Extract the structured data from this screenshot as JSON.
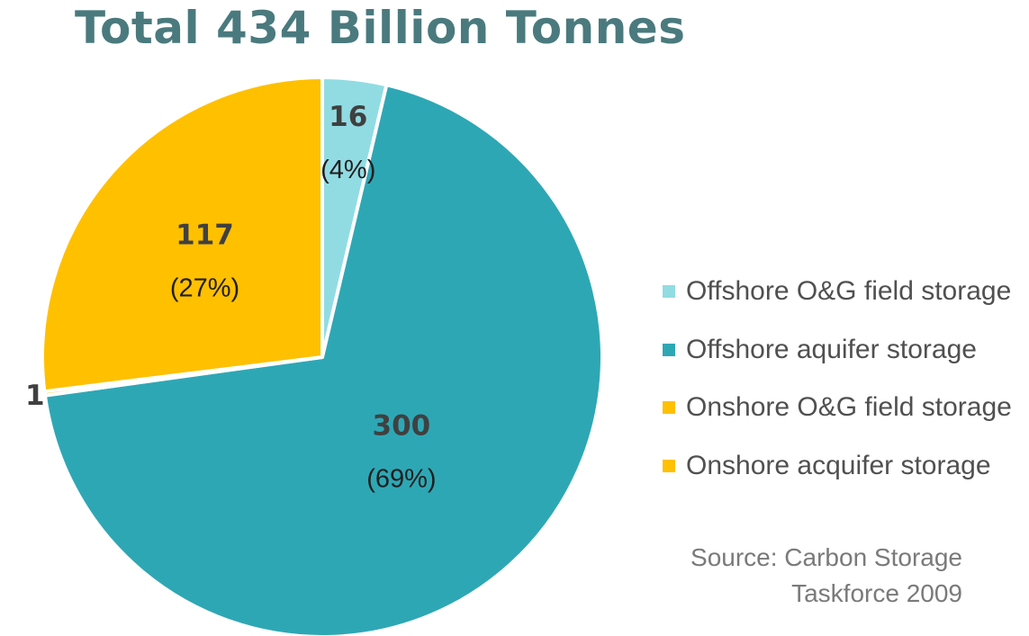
{
  "chart_data": {
    "type": "pie",
    "title": "Total 434 Billion Tonnes",
    "slices": [
      {
        "name": "Offshore O&G field storage",
        "value": 16,
        "value_label": "16",
        "pct_label": "(4%)",
        "color": "#91dce3"
      },
      {
        "name": "Offshore aquifer storage",
        "value": 300,
        "value_label": "300",
        "pct_label": "(69%)",
        "color": "#2ea7b5"
      },
      {
        "name": "Onshore O&G field storage",
        "value": 1,
        "value_label": "1",
        "pct_label": "",
        "color": "#ffc000"
      },
      {
        "name": "Onshore acquifer storage",
        "value": 117,
        "value_label": "117",
        "pct_label": "(27%)",
        "color": "#ffc000"
      }
    ],
    "legend_position": "right",
    "source": [
      "Source: Carbon Storage",
      "Taskforce 2009"
    ]
  }
}
